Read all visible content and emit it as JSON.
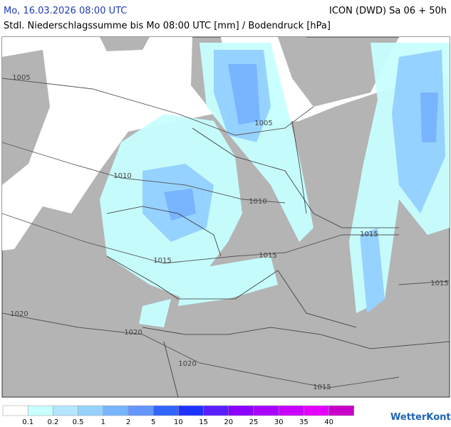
{
  "header": {
    "date": "Mo, 16.03.2026 08:00 UTC",
    "model": "ICON (DWD) Sa 06 + 50h",
    "subtitle": "Stdl. Niederschlagssumme bis Mo 08:00 UTC [mm] / Bodendruck [hPa]"
  },
  "map": {
    "isobar_labels": [
      "1005",
      "1005",
      "1010",
      "1010",
      "1015",
      "1015",
      "1015",
      "1015",
      "1020",
      "1020",
      "1020",
      "1015"
    ]
  },
  "legend": {
    "colors": [
      "#ffffff",
      "#c8ffff",
      "#b4e6ff",
      "#96d2ff",
      "#78b4ff",
      "#6496ff",
      "#3264ff",
      "#1e32ff",
      "#5a1eff",
      "#8c00ff",
      "#aa00ff",
      "#c800ff",
      "#e600ff",
      "#c800c8"
    ],
    "labels": [
      "0.1",
      "0.2",
      "0.5",
      "1",
      "2",
      "5",
      "10",
      "15",
      "20",
      "25",
      "30",
      "35",
      "40"
    ]
  },
  "logo": "WetterKontor"
}
